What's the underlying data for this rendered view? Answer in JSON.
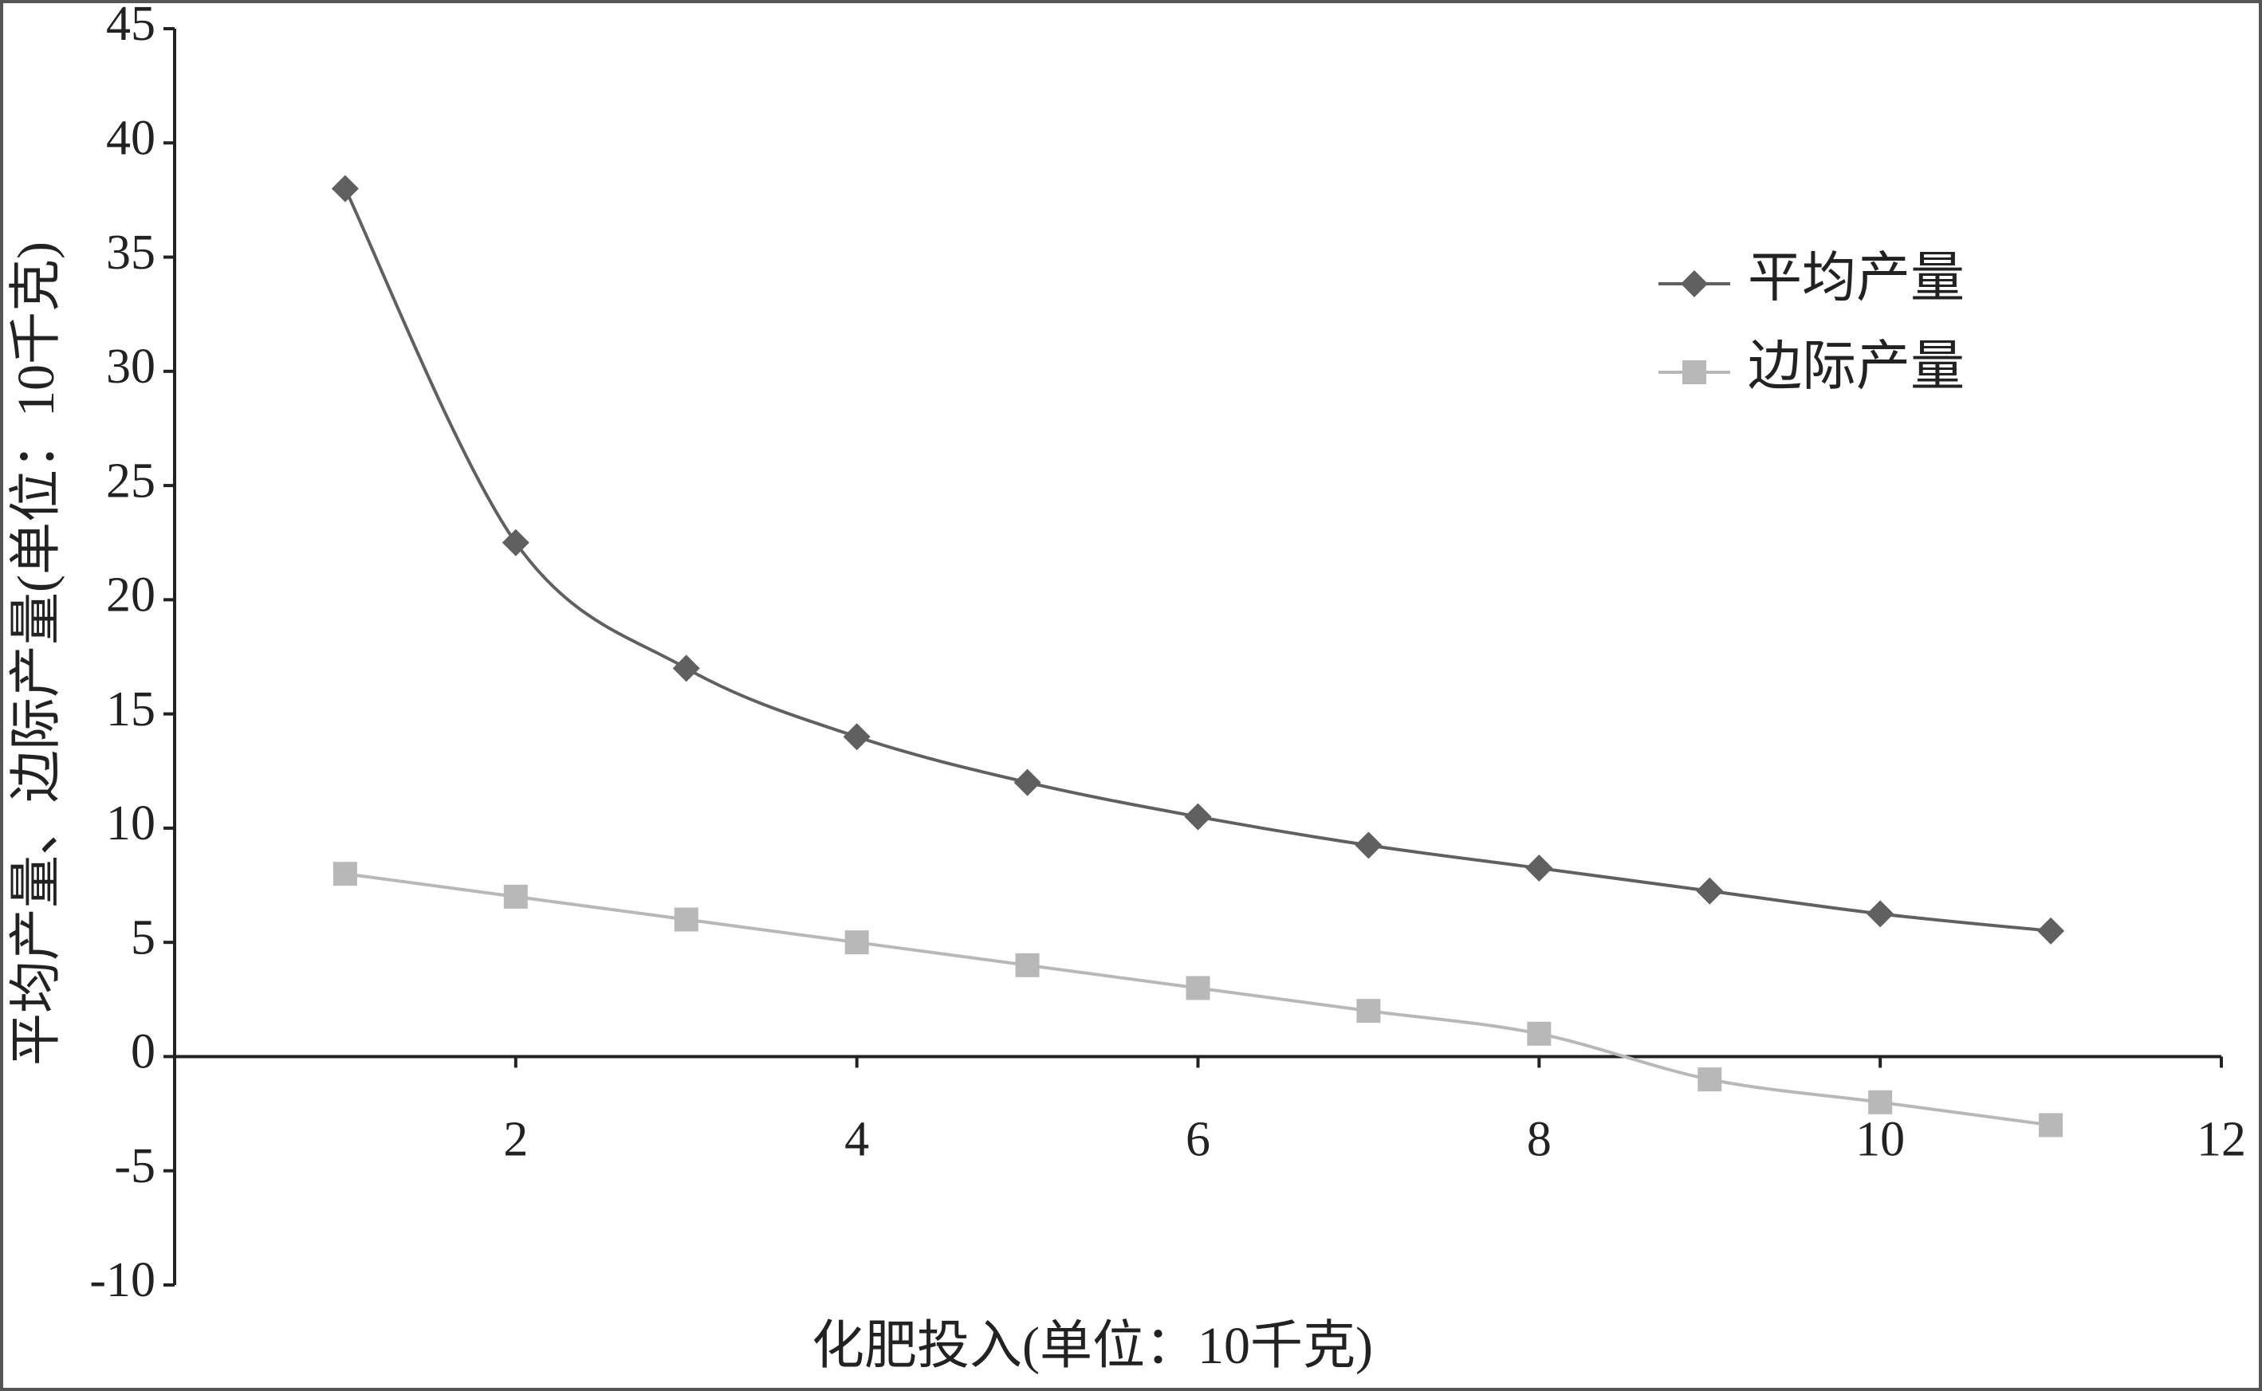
{
  "chart_data": {
    "type": "line",
    "x": [
      1,
      2,
      3,
      4,
      5,
      6,
      7,
      8,
      9,
      10,
      11
    ],
    "series": [
      {
        "name": "平均产量",
        "color": "#606060",
        "marker": "diamond",
        "values": [
          38,
          22.5,
          17,
          14,
          12,
          10.5,
          9.25,
          8.25,
          7.25,
          6.25,
          5.5
        ]
      },
      {
        "name": "边际产量",
        "color": "#b8b8b8",
        "marker": "square",
        "values": [
          8,
          7,
          6,
          5,
          4,
          3,
          2,
          1,
          -1,
          -2,
          -3
        ]
      }
    ],
    "xlabel": "化肥投入(单位：10千克)",
    "ylabel": "平均产量、边际产量(单位：10千克)",
    "xlim": [
      0,
      12
    ],
    "xticks": [
      2,
      4,
      6,
      8,
      10,
      12
    ],
    "ylim": [
      -10,
      45
    ],
    "yticks": [
      -10,
      -5,
      0,
      5,
      10,
      15,
      20,
      25,
      30,
      35,
      40,
      45
    ],
    "smooth": true,
    "legend": "upper right"
  }
}
